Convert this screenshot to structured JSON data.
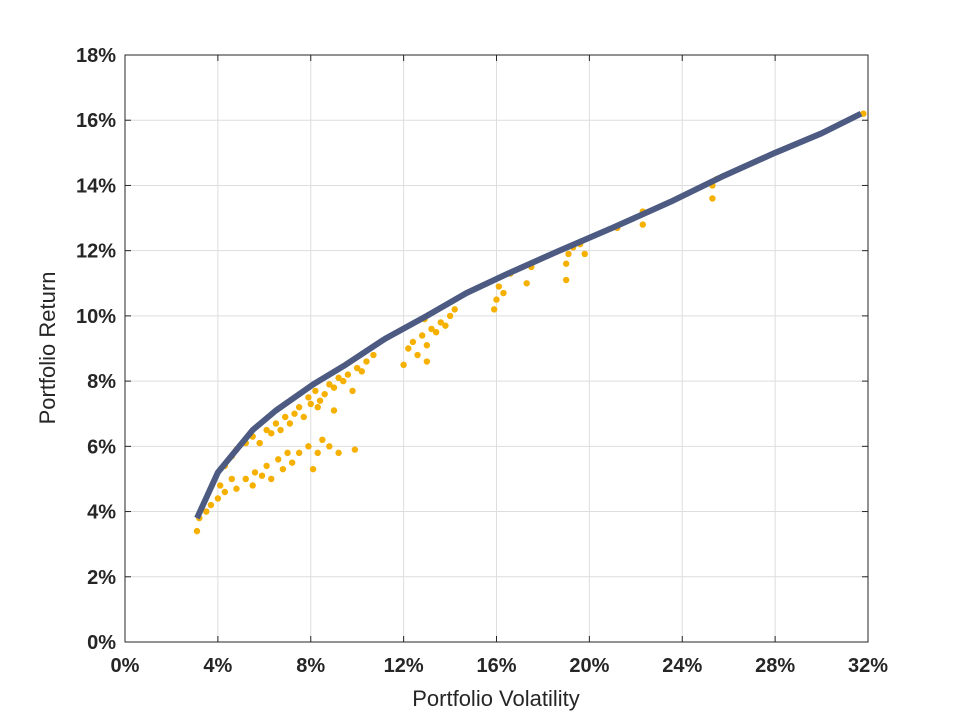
{
  "chart_data": {
    "type": "scatter",
    "xlabel": "Portfolio Volatility",
    "ylabel": "Portfolio Return",
    "xlim": [
      0,
      32
    ],
    "ylim": [
      0,
      18
    ],
    "x_ticks": [
      "0%",
      "4%",
      "8%",
      "12%",
      "16%",
      "20%",
      "24%",
      "28%",
      "32%"
    ],
    "y_ticks": [
      "0%",
      "2%",
      "4%",
      "6%",
      "8%",
      "10%",
      "12%",
      "14%",
      "16%",
      "18%"
    ],
    "grid": true,
    "colors": {
      "frontier": "#4d5b82",
      "points": "#f5b000"
    },
    "series": [
      {
        "type": "line",
        "points": [
          [
            3.1,
            3.8
          ],
          [
            4.0,
            5.2
          ],
          [
            5.5,
            6.5
          ],
          [
            6.5,
            7.1
          ],
          [
            8.1,
            7.9
          ],
          [
            9.5,
            8.5
          ],
          [
            11.2,
            9.3
          ],
          [
            13.0,
            10.0
          ],
          [
            14.7,
            10.7
          ],
          [
            16.5,
            11.3
          ],
          [
            18.7,
            12.0
          ],
          [
            21.0,
            12.7
          ],
          [
            23.5,
            13.5
          ],
          [
            25.8,
            14.3
          ],
          [
            28.0,
            15.0
          ],
          [
            30.0,
            15.6
          ],
          [
            31.7,
            16.2
          ]
        ]
      },
      {
        "type": "scatter",
        "points": [
          [
            3.1,
            3.4
          ],
          [
            3.2,
            3.8
          ],
          [
            3.5,
            4.0
          ],
          [
            3.7,
            4.2
          ],
          [
            4.0,
            4.4
          ],
          [
            4.1,
            4.8
          ],
          [
            4.3,
            4.6
          ],
          [
            4.6,
            5.0
          ],
          [
            4.8,
            4.7
          ],
          [
            5.2,
            5.0
          ],
          [
            5.5,
            4.8
          ],
          [
            5.6,
            5.2
          ],
          [
            5.9,
            5.1
          ],
          [
            6.1,
            5.4
          ],
          [
            6.3,
            5.0
          ],
          [
            6.6,
            5.6
          ],
          [
            6.8,
            5.3
          ],
          [
            7.0,
            5.8
          ],
          [
            7.2,
            5.5
          ],
          [
            7.5,
            5.8
          ],
          [
            8.1,
            5.3
          ],
          [
            7.9,
            6.0
          ],
          [
            8.3,
            5.8
          ],
          [
            8.5,
            6.2
          ],
          [
            8.8,
            6.0
          ],
          [
            9.2,
            5.8
          ],
          [
            9.9,
            5.9
          ],
          [
            4.3,
            5.4
          ],
          [
            4.6,
            5.7
          ],
          [
            4.8,
            5.9
          ],
          [
            5.2,
            6.1
          ],
          [
            5.5,
            6.3
          ],
          [
            5.8,
            6.1
          ],
          [
            6.1,
            6.5
          ],
          [
            6.3,
            6.4
          ],
          [
            6.5,
            6.7
          ],
          [
            6.7,
            6.5
          ],
          [
            6.9,
            6.9
          ],
          [
            7.1,
            6.7
          ],
          [
            7.3,
            7.0
          ],
          [
            7.5,
            7.2
          ],
          [
            7.7,
            6.9
          ],
          [
            7.9,
            7.5
          ],
          [
            8.0,
            7.3
          ],
          [
            8.2,
            7.7
          ],
          [
            8.4,
            7.4
          ],
          [
            8.6,
            7.6
          ],
          [
            8.8,
            7.9
          ],
          [
            9.0,
            7.8
          ],
          [
            9.2,
            8.1
          ],
          [
            9.4,
            8.0
          ],
          [
            9.6,
            8.2
          ],
          [
            9.8,
            7.7
          ],
          [
            10.0,
            8.4
          ],
          [
            10.2,
            8.3
          ],
          [
            10.4,
            8.6
          ],
          [
            10.7,
            8.8
          ],
          [
            9.0,
            7.1
          ],
          [
            8.3,
            7.2
          ],
          [
            12.0,
            8.5
          ],
          [
            12.2,
            9.0
          ],
          [
            12.4,
            9.2
          ],
          [
            12.6,
            8.8
          ],
          [
            12.8,
            9.4
          ],
          [
            13.0,
            9.1
          ],
          [
            13.2,
            9.6
          ],
          [
            13.4,
            9.5
          ],
          [
            13.6,
            9.8
          ],
          [
            13.8,
            9.7
          ],
          [
            14.0,
            10.0
          ],
          [
            14.2,
            10.2
          ],
          [
            13.0,
            8.6
          ],
          [
            12.9,
            9.9
          ],
          [
            15.9,
            10.2
          ],
          [
            16.0,
            10.5
          ],
          [
            16.1,
            10.9
          ],
          [
            16.3,
            10.7
          ],
          [
            17.3,
            11.0
          ],
          [
            17.5,
            11.5
          ],
          [
            16.6,
            11.3
          ],
          [
            19.0,
            11.1
          ],
          [
            19.0,
            11.6
          ],
          [
            19.1,
            11.9
          ],
          [
            19.3,
            12.1
          ],
          [
            19.8,
            11.9
          ],
          [
            19.6,
            12.2
          ],
          [
            21.2,
            12.7
          ],
          [
            22.3,
            12.8
          ],
          [
            22.3,
            13.2
          ],
          [
            25.3,
            13.6
          ],
          [
            25.3,
            14.0
          ],
          [
            25.5,
            14.2
          ],
          [
            31.8,
            16.2
          ]
        ]
      }
    ]
  }
}
